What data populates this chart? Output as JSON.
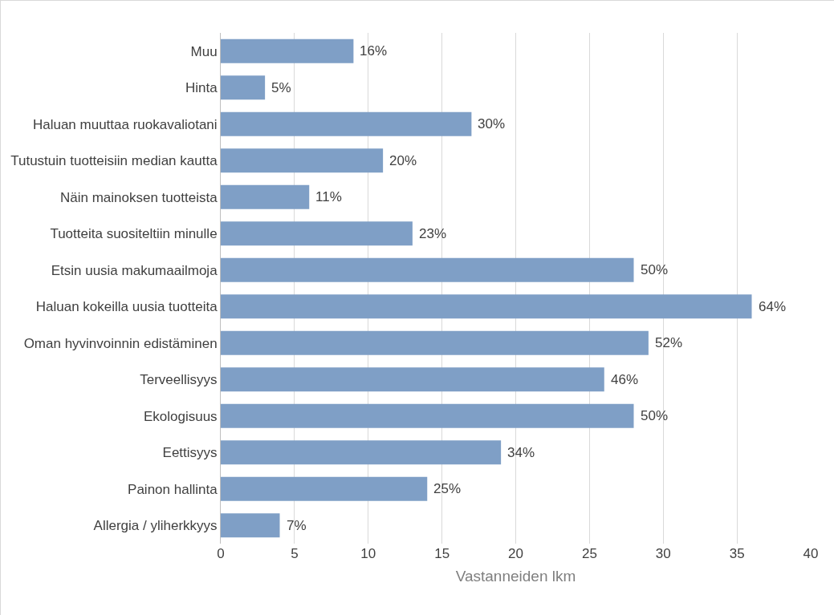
{
  "chart_data": {
    "type": "bar",
    "orientation": "horizontal",
    "xlabel": "Vastanneiden lkm",
    "categories": [
      "Muu",
      "Hinta",
      "Haluan muuttaa ruokavaliotani",
      "Tutustuin tuotteisiin median kautta",
      "Näin mainoksen tuotteista",
      "Tuotteita suositeltiin minulle",
      "Etsin uusia makumaailmoja",
      "Haluan kokeilla uusia tuotteita",
      "Oman hyvinvoinnin edistäminen",
      "Terveellisyys",
      "Ekologisuus",
      "Eettisyys",
      "Painon hallinta",
      "Allergia / yliherkkyys"
    ],
    "values": [
      9,
      3,
      17,
      11,
      6,
      13,
      28,
      36,
      29,
      26,
      28,
      19,
      14,
      4
    ],
    "annotations": [
      {
        "text": "16%",
        "x": 9,
        "y": "Muu"
      },
      {
        "text": "5%",
        "x": 3,
        "y": "Hinta"
      },
      {
        "text": "30%",
        "x": 17,
        "y": "Haluan muuttaa ruokavaliotani"
      },
      {
        "text": "20%",
        "x": 11,
        "y": "Tutustuin tuotteisiin median kautta"
      },
      {
        "text": "11%",
        "x": 6,
        "y": "Näin mainoksen tuotteista"
      },
      {
        "text": "23%",
        "x": 13,
        "y": "Tuotteita suositeltiin minulle"
      },
      {
        "text": "50%",
        "x": 28,
        "y": "Etsin uusia makumaailmoja"
      },
      {
        "text": "64%",
        "x": 36,
        "y": "Haluan kokeilla uusia tuotteita"
      },
      {
        "text": "52%",
        "x": 29,
        "y": "Oman hyvinvoinnin edistäminen"
      },
      {
        "text": "46%",
        "x": 26,
        "y": "Terveellisyys"
      },
      {
        "text": "50%",
        "x": 28,
        "y": "Ekologisuus"
      },
      {
        "text": "34%",
        "x": 19,
        "y": "Eettisyys"
      },
      {
        "text": "25%",
        "x": 14,
        "y": "Painon hallinta"
      },
      {
        "text": "7%",
        "x": 4,
        "y": "Allergia / yliherkkyys"
      }
    ],
    "color": "#7f9fc6",
    "xlim": [
      0,
      40
    ],
    "xticks": [
      0,
      5,
      10,
      15,
      20,
      25,
      30,
      35,
      40
    ],
    "grid": "x"
  }
}
